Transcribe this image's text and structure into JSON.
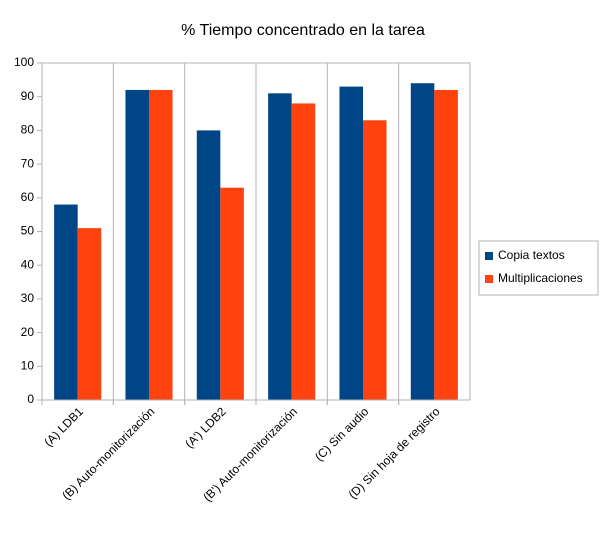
{
  "chart_data": {
    "type": "bar",
    "title": "% Tiempo concentrado en la tarea",
    "categories": [
      "(A) LDB1",
      "(B) Auto-monitorización",
      "(A') LDB2",
      "(B') Auto-monitorización",
      "(C) Sin audio",
      "(D) Sin hoja de registro"
    ],
    "series": [
      {
        "name": "Copia textos",
        "color": "#004586",
        "values": [
          58,
          92,
          80,
          91,
          93,
          94
        ]
      },
      {
        "name": "Multiplicaciones",
        "color": "#ff420e",
        "values": [
          51,
          92,
          63,
          88,
          83,
          92
        ]
      }
    ],
    "ylim": [
      0,
      100
    ],
    "yticks": [
      0,
      10,
      20,
      30,
      40,
      50,
      60,
      70,
      80,
      90,
      100
    ],
    "legend": "right"
  }
}
